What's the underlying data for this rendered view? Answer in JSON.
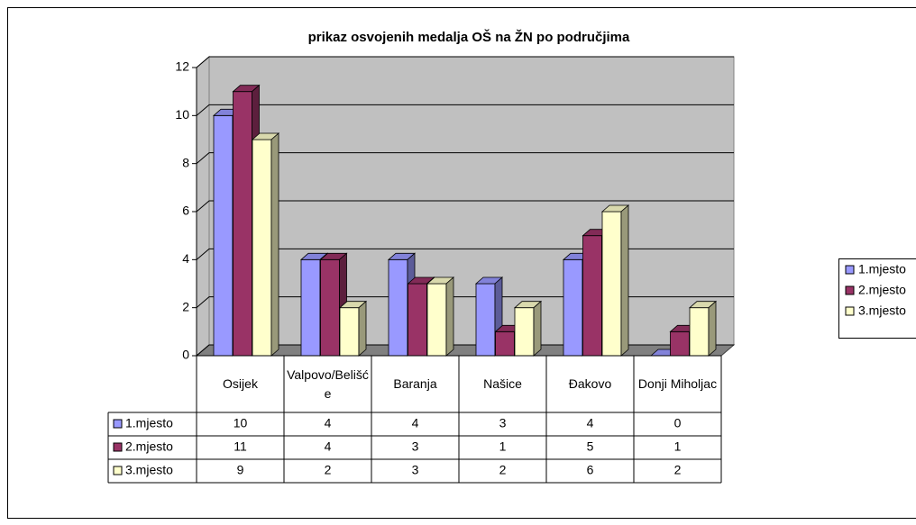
{
  "chart_data": {
    "type": "bar3d",
    "title": "prikaz osvojenih medalja OŠ na ŽN po područjima",
    "categories": [
      "Osijek",
      "Valpovo/Belišće",
      "Baranja",
      "Našice",
      "Đakovo",
      "Donji Miholjac"
    ],
    "series": [
      {
        "name": "1.mjesto",
        "color": "#9999ff",
        "values": [
          10,
          4,
          4,
          3,
          4,
          0
        ]
      },
      {
        "name": "2.mjesto",
        "color": "#993366",
        "values": [
          11,
          4,
          3,
          1,
          5,
          1
        ]
      },
      {
        "name": "3.mjesto",
        "color": "#ffffcc",
        "values": [
          9,
          2,
          3,
          2,
          6,
          2
        ]
      }
    ],
    "ylim": [
      0,
      12
    ],
    "yticks": [
      0,
      2,
      4,
      6,
      8,
      10,
      12
    ],
    "grid": true,
    "legend": "right",
    "data_table": true
  }
}
